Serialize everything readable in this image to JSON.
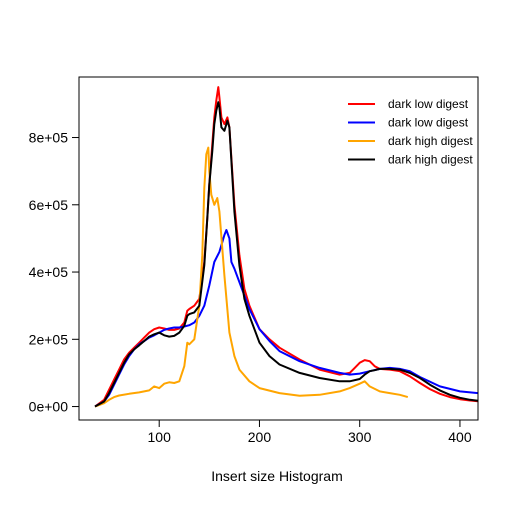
{
  "chart_data": {
    "type": "line",
    "title": "",
    "xlabel": "Insert size Histogram",
    "ylabel": "",
    "xlim": [
      20,
      418
    ],
    "ylim": [
      -40000,
      980000
    ],
    "x_ticks": [
      100,
      200,
      300,
      400
    ],
    "x_tick_labels": [
      "100",
      "200",
      "300",
      "400"
    ],
    "y_ticks": [
      0,
      200000,
      400000,
      600000,
      800000
    ],
    "y_tick_labels": [
      "0e+00",
      "2e+05",
      "4e+05",
      "6e+05",
      "8e+05"
    ],
    "grid": false,
    "legend": "top-right",
    "series": [
      {
        "name": "dark low digest",
        "legend_label": "dark low digest",
        "color": "#ff0000",
        "x": [
          36,
          45,
          50,
          55,
          60,
          65,
          70,
          75,
          80,
          85,
          90,
          95,
          100,
          105,
          110,
          115,
          120,
          125,
          128,
          130,
          135,
          140,
          145,
          148,
          150,
          153,
          155,
          157,
          159,
          160,
          162,
          165,
          168,
          170,
          175,
          180,
          185,
          190,
          200,
          210,
          220,
          240,
          260,
          280,
          290,
          295,
          300,
          305,
          310,
          315,
          320,
          330,
          340,
          350,
          360,
          370,
          380,
          390,
          400,
          410,
          418
        ],
        "y": [
          0,
          20000,
          50000,
          80000,
          110000,
          140000,
          160000,
          175000,
          190000,
          205000,
          220000,
          230000,
          235000,
          232000,
          228000,
          228000,
          232000,
          250000,
          285000,
          290000,
          300000,
          320000,
          430000,
          560000,
          660000,
          780000,
          860000,
          910000,
          950000,
          920000,
          860000,
          840000,
          860000,
          830000,
          600000,
          450000,
          350000,
          300000,
          230000,
          200000,
          175000,
          140000,
          110000,
          95000,
          100000,
          115000,
          130000,
          138000,
          135000,
          120000,
          112000,
          110000,
          105000,
          90000,
          70000,
          52000,
          38000,
          28000,
          22000,
          18000,
          16000
        ]
      },
      {
        "name": "dark low digest",
        "legend_label": "dark low digest",
        "color": "#0000ff",
        "x": [
          36,
          45,
          50,
          55,
          60,
          65,
          70,
          75,
          80,
          85,
          90,
          95,
          100,
          105,
          110,
          115,
          120,
          125,
          130,
          135,
          140,
          145,
          150,
          155,
          160,
          163,
          165,
          167,
          170,
          172,
          175,
          180,
          190,
          200,
          210,
          220,
          240,
          260,
          280,
          290,
          300,
          310,
          320,
          330,
          340,
          350,
          360,
          380,
          400,
          418
        ],
        "y": [
          0,
          15000,
          35000,
          65000,
          95000,
          125000,
          150000,
          170000,
          185000,
          195000,
          205000,
          212000,
          220000,
          228000,
          232000,
          235000,
          235000,
          238000,
          242000,
          250000,
          270000,
          300000,
          360000,
          430000,
          460000,
          490000,
          510000,
          525000,
          500000,
          430000,
          410000,
          370000,
          290000,
          230000,
          195000,
          165000,
          135000,
          115000,
          100000,
          95000,
          98000,
          105000,
          112000,
          115000,
          112000,
          105000,
          88000,
          60000,
          45000,
          40000
        ]
      },
      {
        "name": "dark high digest",
        "legend_label": "dark high digest",
        "color": "#ffa500",
        "x": [
          36,
          45,
          50,
          55,
          60,
          70,
          80,
          90,
          95,
          100,
          105,
          110,
          115,
          120,
          125,
          128,
          130,
          135,
          140,
          143,
          145,
          147,
          149,
          150,
          152,
          155,
          158,
          160,
          165,
          170,
          175,
          180,
          190,
          200,
          220,
          240,
          260,
          280,
          290,
          300,
          305,
          310,
          320,
          330,
          340,
          348
        ],
        "y": [
          0,
          10000,
          20000,
          28000,
          33000,
          38000,
          42000,
          48000,
          60000,
          55000,
          68000,
          72000,
          70000,
          75000,
          120000,
          190000,
          185000,
          200000,
          300000,
          450000,
          650000,
          750000,
          770000,
          700000,
          630000,
          600000,
          620000,
          580000,
          390000,
          220000,
          150000,
          110000,
          75000,
          55000,
          40000,
          32000,
          35000,
          45000,
          55000,
          68000,
          75000,
          60000,
          45000,
          40000,
          35000,
          28000
        ]
      },
      {
        "name": "dark high digest",
        "legend_label": "dark high digest",
        "color": "#000000",
        "x": [
          36,
          45,
          50,
          55,
          60,
          65,
          70,
          75,
          80,
          85,
          90,
          95,
          100,
          105,
          110,
          115,
          120,
          125,
          128,
          130,
          135,
          140,
          145,
          148,
          150,
          153,
          155,
          157,
          159,
          160,
          162,
          165,
          168,
          170,
          175,
          180,
          185,
          190,
          200,
          210,
          220,
          240,
          260,
          280,
          290,
          300,
          305,
          310,
          315,
          320,
          330,
          340,
          350,
          360,
          370,
          380,
          390,
          400,
          410,
          418
        ],
        "y": [
          0,
          15000,
          40000,
          70000,
          100000,
          130000,
          155000,
          170000,
          182000,
          195000,
          208000,
          215000,
          220000,
          212000,
          208000,
          210000,
          220000,
          240000,
          270000,
          275000,
          280000,
          300000,
          420000,
          560000,
          660000,
          760000,
          840000,
          880000,
          905000,
          890000,
          830000,
          820000,
          850000,
          830000,
          580000,
          420000,
          320000,
          270000,
          190000,
          150000,
          125000,
          100000,
          85000,
          75000,
          75000,
          82000,
          95000,
          105000,
          108000,
          112000,
          112000,
          110000,
          100000,
          85000,
          65000,
          48000,
          35000,
          26000,
          20000,
          17000
        ]
      }
    ]
  }
}
